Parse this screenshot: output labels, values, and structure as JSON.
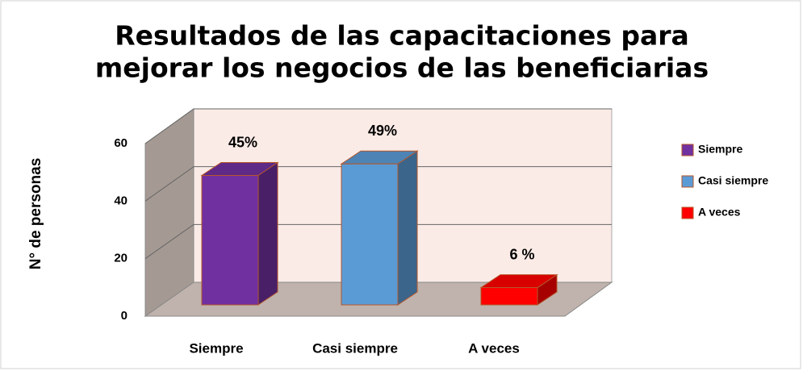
{
  "chart_data": {
    "type": "bar3d",
    "title": [
      "Resultados de las capacitaciones para",
      "mejorar los negocios de las beneficiarias"
    ],
    "y_label": "N° de personas",
    "categories": [
      "Siempre",
      "Casi siempre",
      "A veces"
    ],
    "series": [
      {
        "name": "Siempre",
        "color": "#7030a0"
      },
      {
        "name": "Casi siempre",
        "color": "#5b9bd5"
      },
      {
        "name": "A veces",
        "color": "#ff0000"
      }
    ],
    "values": [
      45,
      49,
      6
    ],
    "value_labels": [
      "45%",
      "49%",
      "6 %"
    ],
    "ylim": [
      0,
      60
    ],
    "yticks": [
      0,
      20,
      40,
      60
    ],
    "grid": true
  }
}
